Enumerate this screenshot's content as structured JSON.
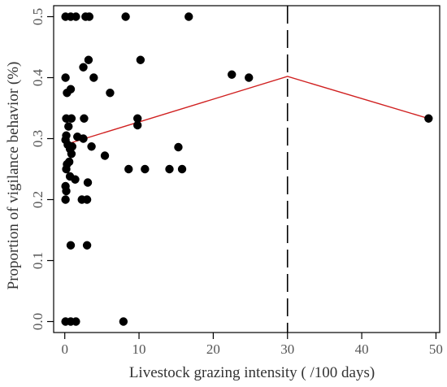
{
  "chart_data": {
    "type": "scatter",
    "title": "",
    "xlabel": "Livestock grazing intensity ( /100 days)",
    "ylabel": "Proportion of vigilance behavior (%)",
    "xlim": [
      -1.5,
      50.5
    ],
    "ylim": [
      -0.018,
      0.518
    ],
    "x_ticks": [
      0,
      10,
      20,
      30,
      40,
      50
    ],
    "y_ticks": [
      0.0,
      0.1,
      0.2,
      0.3,
      0.4,
      0.5
    ],
    "x_tick_labels": [
      "0",
      "10",
      "20",
      "30",
      "40",
      "50"
    ],
    "y_tick_labels": [
      "0.0",
      "0.1",
      "0.2",
      "0.3",
      "0.4",
      "0.5"
    ],
    "grid": false,
    "points": [
      {
        "x": 0.1,
        "y": 0.5
      },
      {
        "x": 0.8,
        "y": 0.5
      },
      {
        "x": 1.5,
        "y": 0.5
      },
      {
        "x": 2.8,
        "y": 0.5
      },
      {
        "x": 3.3,
        "y": 0.5
      },
      {
        "x": 8.2,
        "y": 0.5
      },
      {
        "x": 16.7,
        "y": 0.5
      },
      {
        "x": 3.2,
        "y": 0.429
      },
      {
        "x": 10.2,
        "y": 0.429
      },
      {
        "x": 2.5,
        "y": 0.417
      },
      {
        "x": 22.5,
        "y": 0.405
      },
      {
        "x": 24.8,
        "y": 0.4
      },
      {
        "x": 0.1,
        "y": 0.4
      },
      {
        "x": 3.9,
        "y": 0.4
      },
      {
        "x": 0.3,
        "y": 0.375
      },
      {
        "x": 0.8,
        "y": 0.381
      },
      {
        "x": 6.1,
        "y": 0.375
      },
      {
        "x": 0.2,
        "y": 0.333
      },
      {
        "x": 0.9,
        "y": 0.333
      },
      {
        "x": 2.6,
        "y": 0.333
      },
      {
        "x": 9.8,
        "y": 0.333
      },
      {
        "x": 9.8,
        "y": 0.322
      },
      {
        "x": 49.0,
        "y": 0.333
      },
      {
        "x": 0.5,
        "y": 0.32
      },
      {
        "x": 0.2,
        "y": 0.305
      },
      {
        "x": 0.1,
        "y": 0.298
      },
      {
        "x": 1.7,
        "y": 0.303
      },
      {
        "x": 2.5,
        "y": 0.3
      },
      {
        "x": 0.4,
        "y": 0.29
      },
      {
        "x": 0.7,
        "y": 0.283
      },
      {
        "x": 1.0,
        "y": 0.287
      },
      {
        "x": 3.6,
        "y": 0.287
      },
      {
        "x": 15.3,
        "y": 0.286
      },
      {
        "x": 0.9,
        "y": 0.275
      },
      {
        "x": 5.4,
        "y": 0.272
      },
      {
        "x": 0.3,
        "y": 0.258
      },
      {
        "x": 0.6,
        "y": 0.262
      },
      {
        "x": 0.2,
        "y": 0.25
      },
      {
        "x": 8.6,
        "y": 0.25
      },
      {
        "x": 10.8,
        "y": 0.25
      },
      {
        "x": 14.1,
        "y": 0.25
      },
      {
        "x": 15.8,
        "y": 0.25
      },
      {
        "x": 0.7,
        "y": 0.238
      },
      {
        "x": 1.4,
        "y": 0.233
      },
      {
        "x": 3.1,
        "y": 0.228
      },
      {
        "x": 0.1,
        "y": 0.222
      },
      {
        "x": 0.2,
        "y": 0.214
      },
      {
        "x": 0.1,
        "y": 0.2
      },
      {
        "x": 2.3,
        "y": 0.2
      },
      {
        "x": 3.0,
        "y": 0.2
      },
      {
        "x": 0.8,
        "y": 0.125
      },
      {
        "x": 3.0,
        "y": 0.125
      },
      {
        "x": 0.1,
        "y": 0.0
      },
      {
        "x": 0.8,
        "y": 0.0
      },
      {
        "x": 1.5,
        "y": 0.0
      },
      {
        "x": 7.9,
        "y": 0.0
      }
    ],
    "fit_line": {
      "x": [
        0,
        30,
        49
      ],
      "y": [
        0.29,
        0.402,
        0.333
      ],
      "color": "#d02020"
    },
    "reference_line": {
      "x": 30,
      "style": "dashed",
      "color": "#000000"
    },
    "point_color": "#000000"
  }
}
